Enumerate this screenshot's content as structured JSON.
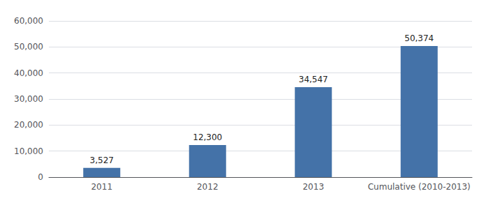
{
  "chart_data": {
    "type": "bar",
    "categories": [
      "2011",
      "2012",
      "2013",
      "Cumulative (2010-2013)"
    ],
    "values": [
      3527,
      12300,
      34547,
      50374
    ],
    "value_labels": [
      "3,527",
      "12,300",
      "34,547",
      "50,374"
    ],
    "data_labels": true,
    "color": "#4472a8",
    "ylim": [
      0,
      60000
    ],
    "yticks": [
      0,
      {
        "value": 10000,
        "label": "10,000"
      },
      {
        "value": 20000,
        "label": "20,000"
      },
      {
        "value": 30000,
        "label": "30,000"
      },
      {
        "value": 40000,
        "label": "40,000"
      },
      {
        "value": 50000,
        "label": "50,000"
      },
      {
        "value": 60000,
        "label": "60,000"
      }
    ],
    "grid": true
  }
}
